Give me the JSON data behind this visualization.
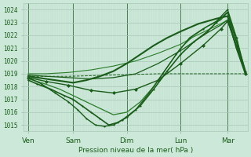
{
  "title": "Pression niveau de la mer( hPa )",
  "bg_color": "#cce8d8",
  "grid_color_major": "#a8c8b8",
  "grid_color_minor": "#b8d8c8",
  "line_color_dark": "#1a5c1a",
  "ylim": [
    1014.5,
    1024.5
  ],
  "yticks": [
    1015,
    1016,
    1017,
    1018,
    1019,
    1020,
    1021,
    1022,
    1023,
    1024
  ],
  "xlim": [
    0.0,
    5.0
  ],
  "xtick_positions": [
    0.1,
    1.1,
    2.3,
    3.5,
    4.55
  ],
  "xtick_labels": [
    "Ven",
    "Sam",
    "Dim",
    "Lun",
    "Mar"
  ],
  "vline_positions": [
    0.1,
    1.1,
    2.3,
    3.5,
    4.55
  ],
  "series": [
    {
      "x": [
        0.1,
        0.3,
        0.5,
        0.7,
        0.9,
        1.1,
        1.4,
        1.7,
        2.0,
        2.3,
        2.6,
        2.9,
        3.2,
        3.5,
        3.7,
        3.9,
        4.1,
        4.3,
        4.55,
        4.75,
        4.95
      ],
      "y": [
        1018.8,
        1018.7,
        1018.6,
        1018.5,
        1018.4,
        1018.3,
        1018.5,
        1018.8,
        1019.2,
        1019.8,
        1020.5,
        1021.2,
        1021.8,
        1022.3,
        1022.6,
        1022.9,
        1023.1,
        1023.3,
        1023.5,
        1021.0,
        1019.0
      ],
      "color": "#1a5c1a",
      "lw": 1.5,
      "marker": null,
      "ls": "-",
      "zorder": 5
    },
    {
      "x": [
        0.1,
        0.3,
        0.6,
        0.9,
        1.1,
        1.3,
        1.5,
        1.7,
        1.9,
        2.1,
        2.3,
        2.6,
        2.9,
        3.2,
        3.5,
        3.8,
        4.1,
        4.3,
        4.55,
        4.75,
        4.95
      ],
      "y": [
        1018.5,
        1018.2,
        1017.8,
        1017.3,
        1017.0,
        1016.5,
        1016.0,
        1015.5,
        1015.0,
        1015.2,
        1015.6,
        1016.5,
        1017.8,
        1019.2,
        1020.5,
        1021.5,
        1022.3,
        1023.0,
        1023.8,
        1021.5,
        1019.2
      ],
      "color": "#1a5c1a",
      "lw": 1.2,
      "marker": ".",
      "ms": 2,
      "ls": "-",
      "zorder": 4
    },
    {
      "x": [
        0.1,
        0.4,
        0.7,
        1.0,
        1.2,
        1.4,
        1.6,
        1.8,
        2.0,
        2.2,
        2.5,
        2.8,
        3.1,
        3.4,
        3.7,
        4.0,
        4.3,
        4.55,
        4.75,
        4.95
      ],
      "y": [
        1018.7,
        1018.2,
        1017.5,
        1016.8,
        1016.2,
        1015.5,
        1015.0,
        1014.9,
        1015.0,
        1015.4,
        1016.2,
        1017.5,
        1019.0,
        1020.5,
        1021.8,
        1022.5,
        1023.1,
        1024.0,
        1021.8,
        1019.1
      ],
      "color": "#1a5c1a",
      "lw": 1.0,
      "marker": ".",
      "ms": 2,
      "ls": "-",
      "zorder": 4
    },
    {
      "x": [
        0.1,
        0.4,
        0.8,
        1.1,
        1.4,
        1.7,
        2.0,
        2.3,
        2.6,
        2.9,
        3.2,
        3.5,
        3.8,
        4.1,
        4.4,
        4.55,
        4.75,
        4.95
      ],
      "y": [
        1018.6,
        1018.3,
        1017.8,
        1017.3,
        1016.8,
        1016.3,
        1015.8,
        1016.0,
        1016.8,
        1018.0,
        1019.5,
        1021.0,
        1022.0,
        1022.7,
        1023.2,
        1023.8,
        1021.5,
        1019.0
      ],
      "color": "#2a7c2a",
      "lw": 0.9,
      "marker": null,
      "ls": "-",
      "zorder": 3
    },
    {
      "x": [
        0.1,
        0.5,
        1.0,
        1.5,
        2.0,
        2.5,
        3.0,
        3.5,
        3.8,
        4.1,
        4.4,
        4.55,
        4.75,
        4.95
      ],
      "y": [
        1018.9,
        1018.8,
        1018.7,
        1018.6,
        1018.7,
        1019.0,
        1019.8,
        1020.8,
        1021.5,
        1022.2,
        1022.8,
        1023.2,
        1021.0,
        1019.0
      ],
      "color": "#1a5c1a",
      "lw": 0.9,
      "marker": null,
      "ls": "-",
      "zorder": 3
    },
    {
      "x": [
        0.1,
        0.5,
        1.0,
        1.5,
        2.0,
        2.5,
        3.0,
        3.5,
        3.8,
        4.1,
        4.4,
        4.55,
        4.75,
        4.95
      ],
      "y": [
        1019.0,
        1019.0,
        1019.1,
        1019.3,
        1019.6,
        1020.0,
        1020.6,
        1021.3,
        1021.9,
        1022.4,
        1022.9,
        1023.2,
        1021.0,
        1019.1
      ],
      "color": "#2a7c2a",
      "lw": 0.8,
      "marker": null,
      "ls": "-",
      "zorder": 3
    },
    {
      "x": [
        0.1,
        1.0,
        2.0,
        3.0,
        4.0,
        4.95
      ],
      "y": [
        1018.8,
        1018.8,
        1018.9,
        1019.0,
        1019.0,
        1019.0
      ],
      "color": "#1a5c1a",
      "lw": 0.7,
      "marker": null,
      "ls": "--",
      "zorder": 2
    },
    {
      "x": [
        0.1,
        0.5,
        1.0,
        1.5,
        2.0,
        2.5,
        3.0,
        3.5,
        4.0,
        4.4,
        4.55,
        4.75,
        4.95
      ],
      "y": [
        1018.7,
        1018.4,
        1018.1,
        1017.7,
        1017.5,
        1017.8,
        1018.5,
        1019.8,
        1021.2,
        1022.5,
        1023.1,
        1021.2,
        1019.0
      ],
      "color": "#1a5c1a",
      "lw": 1.0,
      "marker": "D",
      "ms": 2,
      "ls": "-",
      "zorder": 4
    }
  ]
}
